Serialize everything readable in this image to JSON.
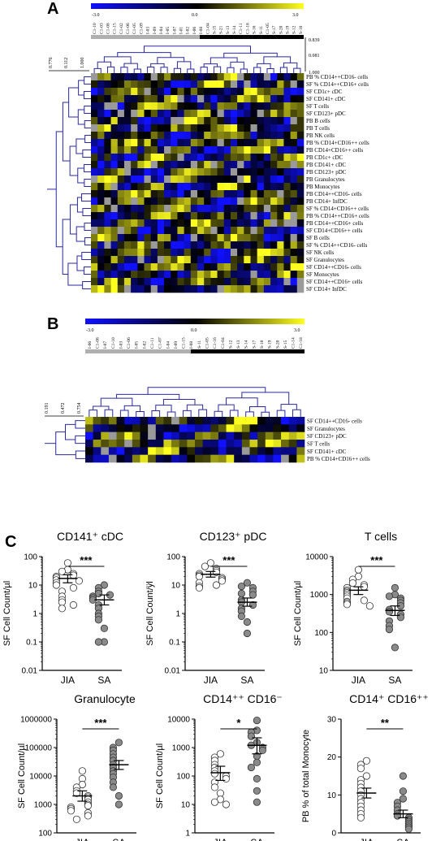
{
  "panels": {
    "a": "A",
    "b": "B",
    "c": "C"
  },
  "colors": {
    "low": "#1010ff",
    "mid": "#000000",
    "high": "#ffff20",
    "missing": "#9a9a9a",
    "jia_bar": "#bdbdbd",
    "sa_bar": "#000000",
    "sa_point": "#8a8a8a"
  },
  "heatmap_a": {
    "scale": {
      "min": "-3.0",
      "mid": "0.0",
      "max": "3.0"
    },
    "column_labels": [
      "C1-10",
      "C1-03",
      "C1-08",
      "C1-15",
      "C1-02",
      "C1-06",
      "C1-05",
      "C1-09",
      "I-03",
      "I-09",
      "I-04",
      "I-05",
      "I-07",
      "I-01",
      "I-02",
      "I-06",
      "I-08",
      "C1-04",
      "S-15",
      "S-21",
      "S-13",
      "S-14",
      "C1-11",
      "C1-18",
      "S-16",
      "S-11",
      "C1-05",
      "S-17",
      "S-20",
      "S-19",
      "S-12",
      "S-10"
    ],
    "col_dendro_scale": [
      "0.839",
      "0.081",
      "1.000"
    ],
    "row_dendro_scale": [
      "0.776",
      "0.112",
      "1.000"
    ],
    "row_labels": [
      "PB % CD14++CD16- cells",
      "SF % CD14++CD16+ cells",
      "SF CD1c+ cDC",
      "SF CD141+ cDC",
      "SF T cells",
      "SF CD123+ pDC",
      "PB B cells",
      "PB T cells",
      "PB NK cells",
      "PB % CD14+CD16++ cells",
      "PB CD14+CD16++ cells",
      "PB CD1c+ cDC",
      "PB CD141+ cDC",
      "PB CD123+ pDC",
      "PB Granulocytes",
      "PB Monocytes",
      "PB CD14++CD16- cells",
      "PB CD14+ InfDC",
      "SF % CD14+CD16++ cells",
      "PB % CD14++CD16+ cells",
      "PB CD14++CD16+ cells",
      "SF CD14+CD16++ cells",
      "SF B cells",
      "SF % CD14++CD16- cells",
      "SF NK cells",
      "SF Granulocytes",
      "SF CD14++CD16- cells",
      "SF Monocytes",
      "SF CD14++CD16+ cells",
      "SF CD14+ InfDC"
    ]
  },
  "heatmap_b": {
    "scale": {
      "min": "-3.0",
      "mid": "0.0",
      "max": "3.0"
    },
    "column_labels": [
      "I-06",
      "C1-08",
      "I-07",
      "C1-10",
      "I-03",
      "C1-06",
      "I-05",
      "I-02",
      "C1-11",
      "C1-07",
      "I-04",
      "I-09",
      "C1-15",
      "I-08",
      "S-11",
      "C1-05",
      "C1-16",
      "C1-04",
      "S-12",
      "S-13",
      "S-14",
      "S-17",
      "S-10",
      "S-19",
      "S-20",
      "S-15",
      "C1-14",
      "C1-18"
    ],
    "row_dendro_scale": [
      "0.191",
      "0.472",
      "0.754"
    ],
    "row_labels": [
      "SF CD14++CD16- cells",
      "SF Granulocytes",
      "SF CD123+ pDC",
      "SF T cells",
      "SF CD141+ cDC",
      "PB % CD14+CD16++ cells"
    ]
  },
  "chart_data": [
    {
      "type": "scatter",
      "title": "CD141⁺ cDC",
      "ylabel": "SF Cell Count/µl",
      "yscale": "log",
      "ylim": [
        0.01,
        100
      ],
      "yticks": [
        "100",
        "10",
        "1",
        "0.1",
        "0.01"
      ],
      "categories": [
        "JIA",
        "SA"
      ],
      "significance": "***",
      "series": [
        {
          "name": "JIA",
          "values": [
            60,
            35,
            30,
            25,
            22,
            20,
            18,
            15,
            14,
            12,
            10,
            8,
            6,
            4,
            3,
            2.5,
            2,
            1.5
          ],
          "mean": 17,
          "sem": [
            12,
            23
          ]
        },
        {
          "name": "SA",
          "values": [
            10,
            8,
            6,
            5,
            4.5,
            4,
            3.5,
            3,
            2,
            1.5,
            1,
            0.8,
            0.6,
            0.3,
            0.1,
            0.1
          ],
          "mean": 3,
          "sem": [
            2,
            4.5
          ]
        }
      ]
    },
    {
      "type": "scatter",
      "title": "CD123⁺ pDC",
      "ylabel": "SF Cell Count/ÿl",
      "yscale": "log",
      "ylim": [
        0.01,
        100
      ],
      "yticks": [
        "100",
        "10",
        "1",
        "0.1",
        "0.01"
      ],
      "categories": [
        "JIA",
        "SA"
      ],
      "significance": "***",
      "series": [
        {
          "name": "JIA",
          "values": [
            60,
            45,
            38,
            32,
            28,
            25,
            22,
            20,
            18,
            16,
            14,
            12,
            10,
            9,
            8
          ],
          "mean": 24,
          "sem": [
            19,
            30
          ]
        },
        {
          "name": "SA",
          "values": [
            12,
            9,
            8,
            6,
            5,
            4.5,
            3,
            2.5,
            2,
            1.5,
            1.2,
            0.8,
            0.5,
            0.2
          ],
          "mean": 2.5,
          "sem": [
            1.8,
            3.5
          ]
        }
      ]
    },
    {
      "type": "scatter",
      "title": "T cells",
      "ylabel": "SF Cell Count/µl",
      "yscale": "log",
      "ylim": [
        10,
        10000
      ],
      "yticks": [
        "10000",
        "1000",
        "100",
        "10"
      ],
      "categories": [
        "JIA",
        "SA"
      ],
      "significance": "***",
      "series": [
        {
          "name": "JIA",
          "values": [
            4500,
            3000,
            2500,
            2000,
            1800,
            1600,
            1500,
            1300,
            1200,
            1100,
            1000,
            900,
            800,
            700,
            650,
            600,
            550,
            500
          ],
          "mean": 1300,
          "sem": [
            1000,
            1600
          ]
        },
        {
          "name": "SA",
          "values": [
            1500,
            1000,
            900,
            800,
            700,
            600,
            500,
            400,
            350,
            300,
            250,
            200,
            150,
            120,
            40
          ],
          "mean": 380,
          "sem": [
            280,
            500
          ]
        }
      ]
    },
    {
      "type": "scatter",
      "title": "Granulocyte",
      "ylabel": "SF Cell Count/µl",
      "yscale": "log",
      "ylim": [
        100,
        1000000
      ],
      "yticks": [
        "1000000",
        "100000",
        "10000",
        "1000",
        "100"
      ],
      "categories": [
        "JIA",
        "SA"
      ],
      "significance": "***",
      "series": [
        {
          "name": "JIA",
          "values": [
            15000,
            8000,
            5000,
            4000,
            3000,
            2500,
            2000,
            1800,
            1500,
            1200,
            1000,
            900,
            800,
            700,
            600,
            500,
            400,
            300
          ],
          "mean": 2000,
          "sem": [
            1300,
            3000
          ]
        },
        {
          "name": "SA",
          "values": [
            150000,
            100000,
            80000,
            60000,
            45000,
            35000,
            25000,
            20000,
            15000,
            12000,
            9000,
            6000,
            4000,
            2000,
            1000
          ],
          "mean": 25000,
          "sem": [
            17000,
            35000
          ]
        }
      ]
    },
    {
      "type": "scatter",
      "title": "CD14⁺⁺ CD16⁻",
      "ylabel": "SF Cell Count/µl",
      "yscale": "log",
      "ylim": [
        1,
        10000
      ],
      "yticks": [
        "10000",
        "1000",
        "100",
        "10",
        "1"
      ],
      "categories": [
        "JIA",
        "SA"
      ],
      "significance": "*",
      "series": [
        {
          "name": "JIA",
          "values": [
            600,
            450,
            350,
            250,
            200,
            150,
            120,
            100,
            80,
            60,
            40,
            25,
            15,
            12,
            10
          ],
          "mean": 130,
          "sem": [
            70,
            220
          ]
        },
        {
          "name": "SA",
          "values": [
            9000,
            4000,
            3500,
            2500,
            1500,
            1200,
            1000,
            800,
            500,
            300,
            200,
            80,
            30,
            12
          ],
          "mean": 1200,
          "sem": [
            600,
            2200
          ]
        }
      ]
    },
    {
      "type": "scatter",
      "title": "CD14⁺ CD16⁺⁺",
      "ylabel": "PB % of total Monocyte",
      "yscale": "linear",
      "ylim": [
        0,
        30
      ],
      "yticks": [
        "30",
        "20",
        "10",
        "0"
      ],
      "categories": [
        "JIA",
        "SA"
      ],
      "significance": "**",
      "series": [
        {
          "name": "JIA",
          "values": [
            19,
            18,
            17,
            15,
            14,
            13,
            12,
            11,
            10,
            9,
            8,
            7,
            6,
            5,
            4
          ],
          "mean": 10.5,
          "sem": [
            9.2,
            11.8
          ]
        },
        {
          "name": "SA",
          "values": [
            15,
            11,
            9,
            8,
            7,
            6,
            5,
            4.5,
            4,
            3.5,
            3,
            2.5,
            2,
            1.5,
            1
          ],
          "mean": 5,
          "sem": [
            4,
            6
          ]
        }
      ]
    }
  ]
}
